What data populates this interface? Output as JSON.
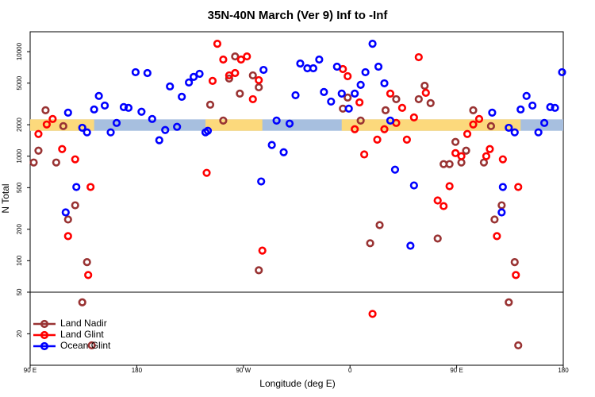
{
  "chart_data": {
    "type": "scatter",
    "title": "35N-40N March (Ver 9)   Inf to -Inf",
    "x_label": "Longitude (deg E)",
    "y_label": "N Total",
    "log_y": true,
    "xlim": [
      90,
      540
    ],
    "ylim": [
      10,
      15500
    ],
    "xticks": [
      {
        "value": 90,
        "label": "90 E"
      },
      180,
      {
        "value": 270,
        "label": "90 W"
      },
      {
        "value": 360,
        "label": "0"
      },
      {
        "value": 450,
        "label": "90 E"
      },
      {
        "value": 540,
        "label": "180"
      }
    ],
    "yticks": [
      20,
      50,
      100,
      200,
      500,
      1000,
      2000,
      5000,
      10000
    ],
    "panel_break": 50,
    "legend": "lower left",
    "band": {
      "range": [
        1750,
        2250
      ],
      "ocean_color": "#a7bfdf",
      "land_color": "#fcd97c",
      "land_segments": [
        [
          90,
          144
        ],
        [
          238,
          286
        ],
        [
          353,
          504
        ]
      ]
    },
    "series": [
      {
        "name": "Land Nadir",
        "color": "#993333",
        "x": [
          93,
          97,
          103,
          112,
          118,
          122,
          128,
          134,
          138,
          142,
          242,
          253,
          258,
          263,
          267,
          278,
          283,
          283,
          354,
          358,
          369,
          377,
          385,
          390,
          399,
          418,
          423,
          428,
          434,
          439,
          444,
          449,
          454,
          458,
          464,
          473,
          479,
          482,
          488,
          494,
          499,
          502
        ],
        "values": [
          870,
          1130,
          2750,
          870,
          1940,
          248,
          339,
          40,
          97,
          15.5,
          3110,
          2190,
          5530,
          9000,
          3970,
          5930,
          4560,
          81,
          2850,
          3640,
          2190,
          147,
          219,
          2750,
          3510,
          3510,
          4720,
          3220,
          163,
          840,
          840,
          1370,
          870,
          1130,
          2750,
          870,
          1940,
          248,
          339,
          40,
          97,
          15.5
        ]
      },
      {
        "name": "Land Glint",
        "color": "#ff0000",
        "x": [
          97,
          104,
          109,
          117,
          128,
          122,
          139,
          141,
          239,
          244,
          248,
          253,
          258,
          263,
          268,
          273,
          278,
          283,
          286,
          354,
          358,
          364,
          368,
          372,
          379,
          383,
          389,
          394,
          399,
          404,
          408,
          414,
          418,
          424,
          434,
          439,
          444,
          449,
          454,
          459,
          464,
          469,
          475,
          478,
          484,
          489,
          500,
          502
        ],
        "values": [
          1630,
          2010,
          2270,
          1170,
          933,
          172,
          73,
          507,
          693,
          5250,
          11900,
          8400,
          5930,
          6240,
          8400,
          9000,
          3510,
          5340,
          125,
          6810,
          5820,
          1810,
          3270,
          1040,
          31,
          1440,
          1810,
          3970,
          2080,
          2900,
          1440,
          2350,
          8850,
          4040,
          377,
          333,
          516,
          1070,
          1000,
          1630,
          2010,
          2270,
          1000,
          1170,
          172,
          933,
          73,
          507
        ]
      },
      {
        "name": "Ocean Glint",
        "color": "#0000ff",
        "x": [
          122,
          129,
          120,
          134,
          138,
          144,
          148,
          153,
          158,
          163,
          169,
          173,
          179,
          184,
          189,
          193,
          199,
          204,
          208,
          214,
          218,
          224,
          228,
          233,
          238,
          240,
          287,
          285,
          294,
          298,
          304,
          309,
          314,
          318,
          324,
          329,
          334,
          338,
          344,
          349,
          353,
          359,
          364,
          369,
          373,
          379,
          384,
          389,
          394,
          398,
          411,
          414,
          480,
          488,
          489,
          494,
          499,
          504,
          509,
          514,
          519,
          524,
          529,
          533,
          539
        ],
        "values": [
          2610,
          507,
          290,
          1870,
          1690,
          2800,
          3770,
          3050,
          1690,
          2080,
          2950,
          2900,
          6360,
          2660,
          6240,
          2270,
          1420,
          1780,
          4650,
          1910,
          3700,
          5070,
          5730,
          6140,
          1690,
          1750,
          6690,
          573,
          1280,
          2190,
          1090,
          2050,
          3830,
          7700,
          6930,
          6930,
          8400,
          4110,
          3330,
          7180,
          3970,
          2850,
          3970,
          4810,
          6360,
          11900,
          7180,
          4980,
          2190,
          743,
          139,
          525,
          2610,
          290,
          507,
          1870,
          1690,
          2800,
          3770,
          3050,
          1690,
          2080,
          2950,
          2900,
          6360
        ]
      }
    ]
  }
}
